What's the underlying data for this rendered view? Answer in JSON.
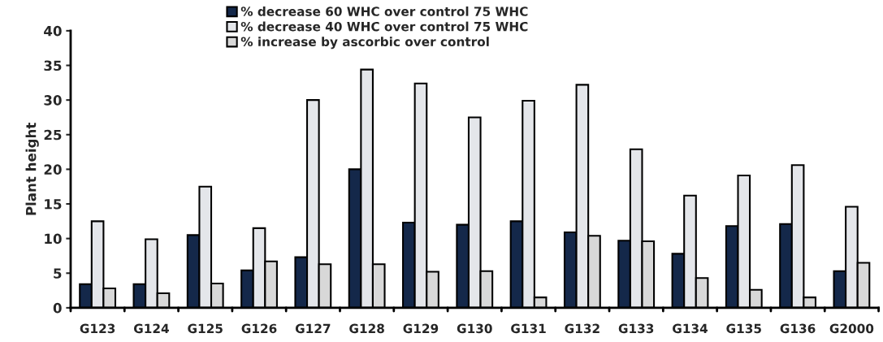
{
  "chart_data": {
    "type": "bar",
    "ylabel": "Plant height",
    "categories": [
      "G123",
      "G124",
      "G125",
      "G126",
      "G127",
      "G128",
      "G129",
      "G130",
      "G131",
      "G132",
      "G133",
      "G134",
      "G135",
      "G136",
      "G2000"
    ],
    "series": [
      {
        "name": "% decrease 60 WHC over control 75 WHC",
        "color": "#14284a",
        "values": [
          3.4,
          3.4,
          10.5,
          5.4,
          7.3,
          20,
          12.3,
          12,
          12.5,
          10.9,
          9.7,
          7.8,
          11.8,
          12.1,
          5.3
        ]
      },
      {
        "name": "% decrease 40 WHC over control 75 WHC",
        "color": "#e4e6ea",
        "values": [
          12.5,
          9.9,
          17.5,
          11.5,
          30,
          34.4,
          32.4,
          27.5,
          29.9,
          32.2,
          22.9,
          16.2,
          19.1,
          20.6,
          14.6
        ]
      },
      {
        "name": "% increase by ascorbic over control",
        "color": "#d8d8d8",
        "values": [
          2.8,
          2.1,
          3.5,
          6.7,
          6.3,
          6.3,
          5.2,
          5.3,
          1.5,
          10.4,
          9.6,
          4.3,
          2.6,
          1.5,
          6.5
        ]
      }
    ],
    "ylim": [
      0,
      40
    ],
    "yticks": [
      0,
      5,
      10,
      15,
      20,
      25,
      30,
      35,
      40
    ],
    "grid": false,
    "legend": "top"
  }
}
